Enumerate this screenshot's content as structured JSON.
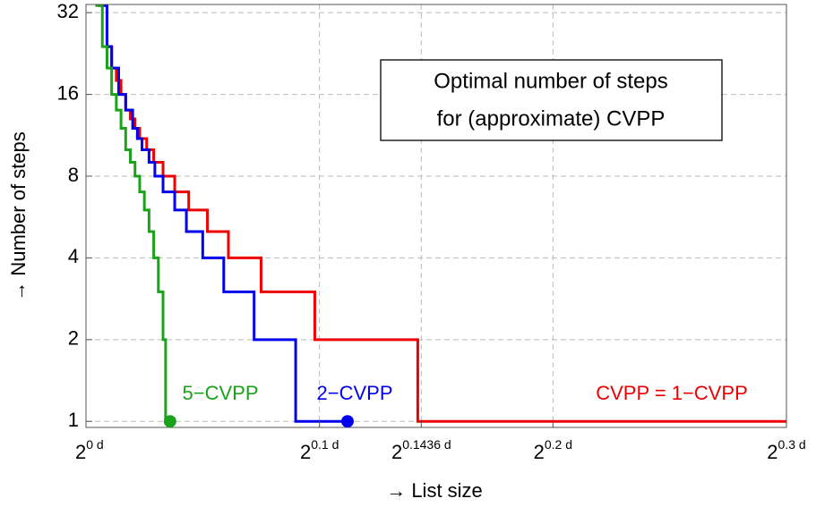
{
  "chart_data": {
    "type": "step",
    "title": [
      "Optimal number of steps",
      "for (approximate) CVPP"
    ],
    "x_label": "→ List size",
    "y_label": "→ Number of steps",
    "tick_base": "2",
    "xlim": [
      0,
      0.3
    ],
    "xticks": [
      {
        "value": 0,
        "label": "0 d"
      },
      {
        "value": 0.1,
        "label": "0.1 d"
      },
      {
        "value": 0.1436,
        "label": "0.1436 d"
      },
      {
        "value": 0.2,
        "label": "0.2 d"
      },
      {
        "value": 0.3,
        "label": "0.3 d"
      }
    ],
    "ylim": [
      0.95,
      34.3
    ],
    "ylog": 2,
    "yticks": [
      1,
      2,
      4,
      8,
      16,
      32
    ],
    "grid": true,
    "series": [
      {
        "name": "CVPP = 1−CVPP",
        "color": "#ee0000",
        "end_marker": false,
        "x": [
          0.005,
          0.009,
          0.011,
          0.013,
          0.015,
          0.017,
          0.019,
          0.021,
          0.023,
          0.026,
          0.029,
          0.033,
          0.038,
          0.044,
          0.052,
          0.061,
          0.075,
          0.098,
          0.1421,
          0.3
        ],
        "values": [
          34,
          24,
          20,
          18,
          16,
          14,
          13,
          12,
          11,
          10,
          9,
          8,
          7,
          6,
          5,
          4,
          3,
          2,
          1,
          1
        ]
      },
      {
        "name": "2−CVPP",
        "color": "#0000ee",
        "end_marker": true,
        "x": [
          0.005,
          0.009,
          0.011,
          0.014,
          0.017,
          0.02,
          0.022,
          0.024,
          0.027,
          0.0295,
          0.033,
          0.038,
          0.043,
          0.05,
          0.059,
          0.072,
          0.0898,
          0.112
        ],
        "values": [
          34,
          24,
          20,
          16,
          14,
          12,
          11,
          10,
          9,
          8,
          7,
          6,
          5,
          4,
          3,
          2,
          1,
          1
        ]
      },
      {
        "name": "5−CVPP",
        "color": "#1aa31a",
        "end_marker": true,
        "x": [
          0.004,
          0.007,
          0.009,
          0.011,
          0.013,
          0.015,
          0.017,
          0.019,
          0.021,
          0.023,
          0.025,
          0.027,
          0.029,
          0.031,
          0.033,
          0.0341,
          0.036
        ],
        "values": [
          34,
          24,
          20,
          16,
          14,
          12,
          10,
          9,
          8,
          7,
          6,
          5,
          4,
          3,
          2,
          1,
          1
        ]
      }
    ]
  }
}
